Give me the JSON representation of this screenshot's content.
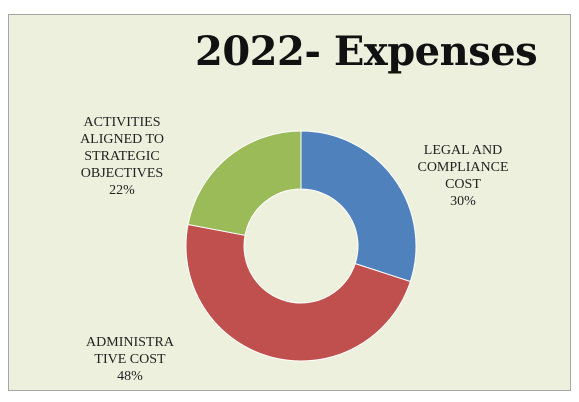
{
  "chart_data": {
    "type": "pie",
    "donut": true,
    "title": "2022- Expenses",
    "slices": [
      {
        "label": "LEGAL AND\nCOMPLIANCE\nCOST",
        "pct_label": "30%",
        "value": 30,
        "color": "#4f81bd"
      },
      {
        "label": "ADMINISTRA\nTIVE COST",
        "pct_label": "48%",
        "value": 48,
        "color": "#c0504d"
      },
      {
        "label": "ACTIVITIES\nALIGNED TO\nSTRATEGIC\nOBJECTIVES",
        "pct_label": "22%",
        "value": 22,
        "color": "#9bbb59"
      }
    ],
    "start_angle": "12 o'clock, clockwise",
    "legend": "none (data labels)"
  }
}
